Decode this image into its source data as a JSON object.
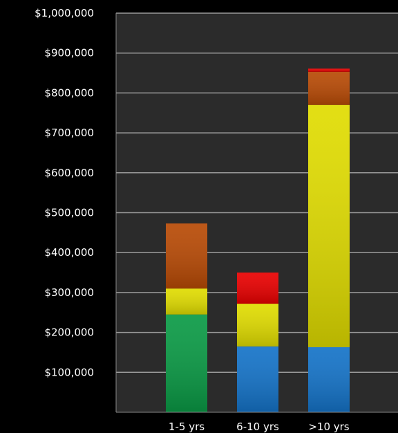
{
  "chart_data": {
    "type": "bar",
    "stacked": true,
    "categories": [
      "1-5 yrs",
      "6-10 yrs",
      ">10 yrs"
    ],
    "series": [
      {
        "color": "#0a9a45",
        "values": [
          245000,
          0,
          0
        ]
      },
      {
        "color": "#1473c8",
        "values": [
          0,
          165000,
          163000
        ]
      },
      {
        "color": "#e0dc00",
        "values": [
          65000,
          107000,
          607000
        ]
      },
      {
        "color": "#b84a05",
        "values": [
          163000,
          0,
          83000
        ]
      },
      {
        "color": "#e80000",
        "values": [
          0,
          78000,
          8000
        ]
      }
    ],
    "y_ticks": [
      "$100,000",
      "$200,000",
      "$300,000",
      "$400,000",
      "$500,000",
      "$600,000",
      "$700,000",
      "$800,000",
      "$900,000",
      "$1,000,000"
    ],
    "ylim": [
      0,
      1000000
    ],
    "grid": true,
    "colors": {
      "page_background": "#000000",
      "plot_background": "#2b2b2b",
      "gridline": "#9a9a9a",
      "text": "#ffffff"
    }
  }
}
